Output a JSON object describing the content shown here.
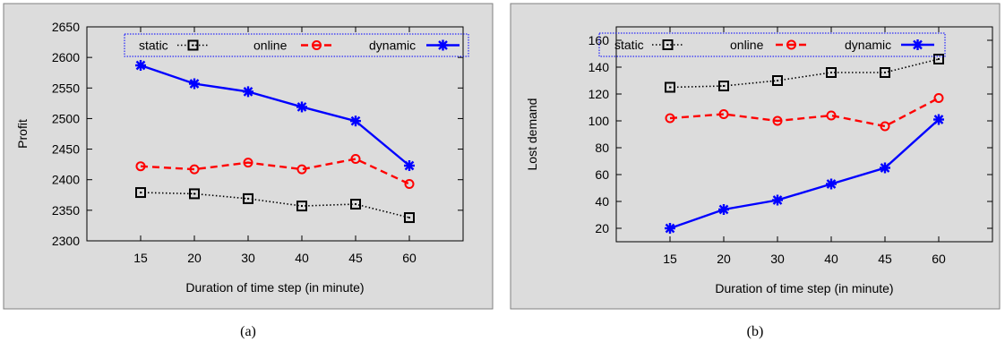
{
  "chart_data": [
    {
      "type": "line",
      "categories": [
        "15",
        "20",
        "30",
        "40",
        "45",
        "60"
      ],
      "xlabel": "Duration of time step (in minute)",
      "ylabel": "Profit",
      "ylim": [
        2300,
        2650
      ],
      "yticks": [
        2300,
        2350,
        2400,
        2450,
        2500,
        2550,
        2600,
        2650
      ],
      "legend": "top, inside, single row with dotted border",
      "grid": false,
      "caption": "(a)",
      "series": [
        {
          "name": "static",
          "color": "#000000",
          "marker": "square",
          "dash": "dotted",
          "values": [
            2379,
            2377,
            2369,
            2357,
            2360,
            2338
          ]
        },
        {
          "name": "online",
          "color": "#ff0000",
          "marker": "circle",
          "dash": "dashed",
          "values": [
            2422,
            2417,
            2428,
            2417,
            2434,
            2393
          ]
        },
        {
          "name": "dynamic",
          "color": "#0000ff",
          "marker": "star",
          "dash": "solid",
          "values": [
            2587,
            2557,
            2544,
            2519,
            2496,
            2423
          ]
        }
      ]
    },
    {
      "type": "line",
      "categories": [
        "15",
        "20",
        "30",
        "40",
        "45",
        "60"
      ],
      "xlabel": "Duration of time step (in minute)",
      "ylabel": "Lost demand",
      "ylim": [
        10,
        170
      ],
      "yticks": [
        20,
        40,
        60,
        80,
        100,
        120,
        140,
        160
      ],
      "legend": "top, inside, single row with dotted border",
      "grid": false,
      "caption": "(b)",
      "series": [
        {
          "name": "static",
          "color": "#000000",
          "marker": "square",
          "dash": "dotted",
          "values": [
            125,
            126,
            130,
            136,
            136,
            146
          ]
        },
        {
          "name": "online",
          "color": "#ff0000",
          "marker": "circle",
          "dash": "dashed",
          "values": [
            102,
            105,
            100,
            104,
            96,
            117
          ]
        },
        {
          "name": "dynamic",
          "color": "#0000ff",
          "marker": "star",
          "dash": "solid",
          "values": [
            20,
            34,
            41,
            53,
            65,
            101
          ]
        }
      ]
    }
  ]
}
